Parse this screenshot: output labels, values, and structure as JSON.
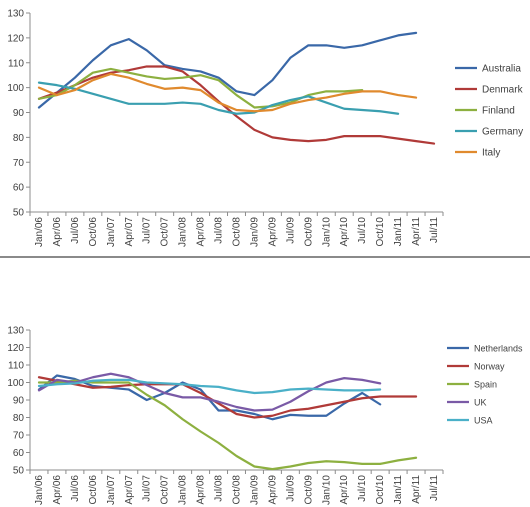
{
  "chart_data": [
    {
      "type": "line",
      "title": "",
      "xlabel": "",
      "ylabel": "",
      "ylim": [
        50,
        130
      ],
      "yticks": [
        50,
        60,
        70,
        80,
        90,
        100,
        110,
        120,
        130
      ],
      "grid": false,
      "legend_position": "right",
      "x_labels": [
        "Jan/06",
        "Apr/06",
        "Jul/06",
        "Oct/06",
        "Jan/07",
        "Apr/07",
        "Jul/07",
        "Oct/07",
        "Jan/08",
        "Apr/08",
        "Jul/08",
        "Oct/08",
        "Jan/09",
        "Apr/09",
        "Jul/09",
        "Oct/09",
        "Jan/10",
        "Apr/10",
        "Jul/10",
        "Oct/10",
        "Jan/11",
        "Apr/11",
        "Jul/11"
      ],
      "series": [
        {
          "name": "Australia",
          "color": "#3a68a8",
          "values": [
            92,
            98,
            104,
            111,
            117,
            119.5,
            115,
            109,
            107.5,
            106.5,
            104,
            98.5,
            97,
            103,
            112,
            117,
            117,
            116,
            117,
            119,
            121,
            122,
            null
          ]
        },
        {
          "name": "Denmark",
          "color": "#b03a38",
          "values": [
            95.5,
            98,
            101,
            104,
            106,
            107,
            108.5,
            108.5,
            106.5,
            101,
            94.5,
            88.5,
            83,
            80,
            79,
            78.5,
            79,
            80.5,
            80.5,
            80.5,
            79.5,
            78.5,
            77.5
          ]
        },
        {
          "name": "Finland",
          "color": "#8db040",
          "values": [
            95.5,
            97,
            101,
            106,
            107.5,
            106,
            104.5,
            103.5,
            104,
            105,
            103,
            97,
            92,
            92.5,
            94,
            97,
            98.5,
            98.5,
            99,
            null,
            null,
            null,
            null
          ]
        },
        {
          "name": "Germany",
          "color": "#3a9fb0",
          "values": [
            102,
            101,
            99.5,
            97.5,
            95.5,
            93.5,
            93.5,
            93.5,
            94,
            93.5,
            91,
            89.5,
            90,
            93,
            95,
            96.5,
            94,
            91.5,
            91,
            90.5,
            89.5,
            null,
            null
          ]
        },
        {
          "name": "Italy",
          "color": "#e08a2e",
          "values": [
            100,
            97,
            99,
            103,
            105.5,
            104,
            101.5,
            99.5,
            100,
            99,
            94,
            91,
            90.5,
            91,
            93.5,
            95,
            96,
            97.5,
            98.5,
            98.5,
            97,
            96,
            null
          ]
        }
      ]
    },
    {
      "type": "line",
      "title": "",
      "xlabel": "",
      "ylabel": "",
      "ylim": [
        50,
        130
      ],
      "yticks": [
        50,
        60,
        70,
        80,
        90,
        100,
        110,
        120,
        130
      ],
      "grid": false,
      "legend_position": "right",
      "x_labels": [
        "Jan/06",
        "Apr/06",
        "Jul/06",
        "Oct/06",
        "Jan/07",
        "Apr/07",
        "Jul/07",
        "Oct/07",
        "Jan/08",
        "Apr/08",
        "Jul/08",
        "Oct/08",
        "Jan/09",
        "Apr/09",
        "Jul/09",
        "Oct/09",
        "Jan/10",
        "Apr/10",
        "Jul/10",
        "Oct/10",
        "Jan/11",
        "Apr/11",
        "Jul/11"
      ],
      "series": [
        {
          "name": "Netherlands",
          "color": "#3a68a8",
          "values": [
            96,
            104,
            102,
            98,
            97,
            96,
            90,
            94,
            100,
            96,
            84,
            84,
            82,
            79,
            81.5,
            81,
            81,
            88,
            94,
            87.5,
            null,
            null,
            null
          ]
        },
        {
          "name": "Norway",
          "color": "#b03a38",
          "values": [
            103,
            101,
            99,
            97,
            97.5,
            98.5,
            99,
            99,
            99,
            94,
            88,
            82,
            80,
            81,
            84,
            85,
            87,
            89,
            91,
            92,
            92,
            92,
            null
          ]
        },
        {
          "name": "Spain",
          "color": "#8db040",
          "values": [
            100,
            100,
            101,
            100,
            100,
            100,
            93,
            87,
            79,
            72,
            65.5,
            58,
            52,
            50.5,
            52,
            54,
            55,
            54.5,
            53.5,
            53.5,
            55.5,
            57,
            null
          ]
        },
        {
          "name": "UK",
          "color": "#7a5aa6",
          "values": [
            95.5,
            101.5,
            100,
            103,
            105,
            103,
            98.5,
            94,
            91.5,
            91.5,
            89,
            86,
            84,
            84.5,
            89,
            95,
            100,
            102.5,
            101.5,
            99.5,
            null,
            null,
            null
          ]
        },
        {
          "name": "USA",
          "color": "#4ab0c8",
          "values": [
            98,
            99,
            99.5,
            101,
            101.5,
            101.5,
            100,
            99.5,
            99,
            98,
            97.5,
            95.5,
            94,
            94.5,
            96,
            96.5,
            96,
            95.5,
            95.5,
            96,
            null,
            null,
            null
          ]
        }
      ]
    }
  ]
}
